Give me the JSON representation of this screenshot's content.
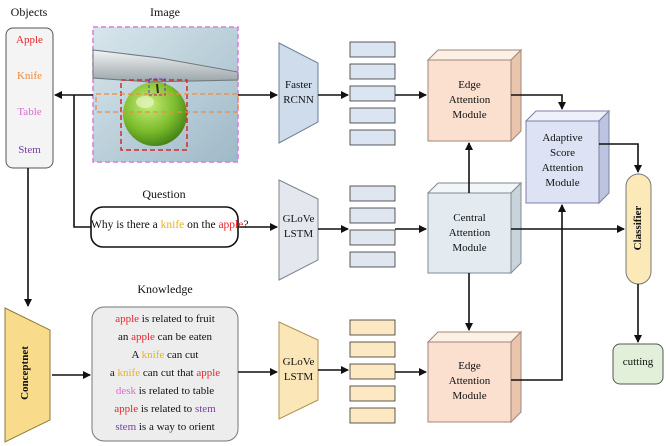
{
  "headers": {
    "objects": "Objects",
    "image": "Image",
    "question": "Question",
    "knowledge": "Knowledge"
  },
  "objects": [
    {
      "text": "Apple",
      "color": "#e8242a"
    },
    {
      "text": "Knife",
      "color": "#ec8a3c"
    },
    {
      "text": "Table",
      "color": "#e06ad0"
    },
    {
      "text": "Stem",
      "color": "#7a3fa0"
    }
  ],
  "question": {
    "parts": [
      {
        "text": "Why is there a ",
        "color": "#111111"
      },
      {
        "text": "knife",
        "color": "#e8b21b"
      },
      {
        "text": " on the ",
        "color": "#111111"
      },
      {
        "text": "apple",
        "color": "#e8242a"
      },
      {
        "text": "?",
        "color": "#111111"
      }
    ]
  },
  "knowledge": [
    [
      {
        "text": "apple",
        "color": "#e8242a"
      },
      {
        "text": " is related to fruit",
        "color": "#111111"
      }
    ],
    [
      {
        "text": "an ",
        "color": "#111111"
      },
      {
        "text": "apple",
        "color": "#e8242a"
      },
      {
        "text": " can be eaten",
        "color": "#111111"
      }
    ],
    [
      {
        "text": "A ",
        "color": "#111111"
      },
      {
        "text": "knife",
        "color": "#e8b21b"
      },
      {
        "text": " can cut",
        "color": "#111111"
      }
    ],
    [
      {
        "text": "a ",
        "color": "#111111"
      },
      {
        "text": "knife",
        "color": "#e8b21b"
      },
      {
        "text": " can cut that ",
        "color": "#111111"
      },
      {
        "text": "apple",
        "color": "#e8242a"
      }
    ],
    [
      {
        "text": "desk",
        "color": "#e06ad0"
      },
      {
        "text": " is related to table",
        "color": "#111111"
      }
    ],
    [
      {
        "text": "apple",
        "color": "#e8242a"
      },
      {
        "text": " is related to ",
        "color": "#111111"
      },
      {
        "text": "stem",
        "color": "#7a3fa0"
      }
    ],
    [
      {
        "text": "stem",
        "color": "#7a3fa0"
      },
      {
        "text": " is a way to orient",
        "color": "#111111"
      }
    ]
  ],
  "encoders": {
    "faster_rcnn": "Faster\nRCNN",
    "glove_question": "GLoVe\nLSTM",
    "glove_knowledge": "GLoVe\nLSTM",
    "conceptnet": "Conceptnet"
  },
  "modules": {
    "edge_top": "Edge\nAttention\nModule",
    "central": "Central\nAttention\nModule",
    "edge_bottom": "Edge\nAttention\nModule",
    "adaptive": "Adaptive\nScore\nAttention\nModule"
  },
  "classifier": "Classifier",
  "answer": "cutting",
  "colors": {
    "rcnn_fill": "#cfdcec",
    "glove_q_fill": "#e4e8ee",
    "glove_k_fill": "#fbe6b8",
    "concept_fill": "#f8dc8c",
    "feat_top": "#dbe5f1",
    "feat_mid": "#dfe6ef",
    "feat_bot": "#fce8c2",
    "edge_face": "#fbe0cf",
    "central_face": "#e4ebf0",
    "adaptive_face": "#dde3f4",
    "classifier_fill": "#fbe9b8",
    "answer_fill": "#e2f0d9"
  }
}
